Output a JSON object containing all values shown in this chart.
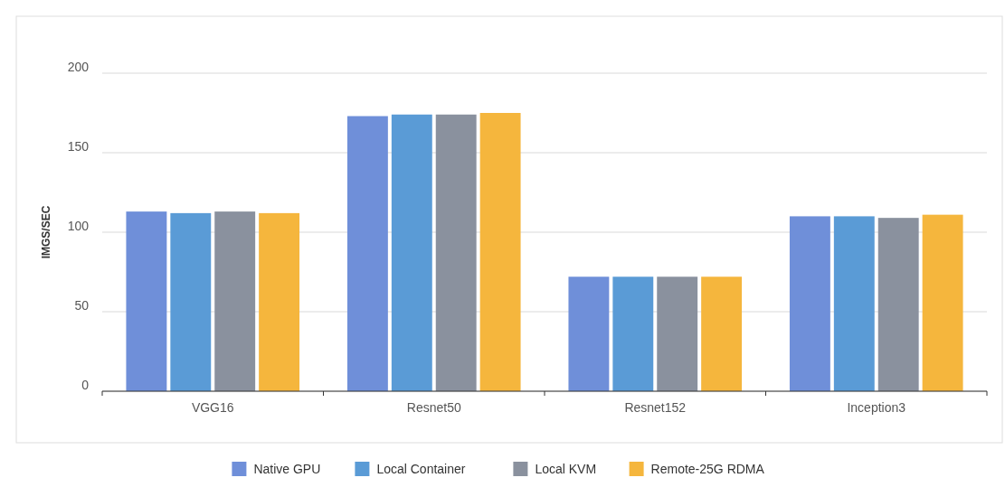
{
  "chart_data": {
    "type": "bar",
    "ylabel": "IMGS/SEC",
    "categories": [
      "VGG16",
      "Resnet50",
      "Resnet152",
      "Inception3"
    ],
    "series": [
      {
        "name": "Native GPU",
        "color": "#6f8fd9",
        "values": [
          113,
          173,
          72,
          110
        ]
      },
      {
        "name": "Local Container",
        "color": "#5a9bd6",
        "values": [
          112,
          174,
          72,
          110
        ]
      },
      {
        "name": "Local KVM",
        "color": "#8a919e",
        "values": [
          113,
          174,
          72,
          109
        ]
      },
      {
        "name": "Remote-25G RDMA",
        "color": "#f5b63d",
        "values": [
          112,
          175,
          72,
          111
        ]
      }
    ],
    "ylim": [
      0,
      200
    ],
    "yticks": [
      0,
      50,
      100,
      150,
      200
    ],
    "grid": "y",
    "legend": "bottom"
  }
}
